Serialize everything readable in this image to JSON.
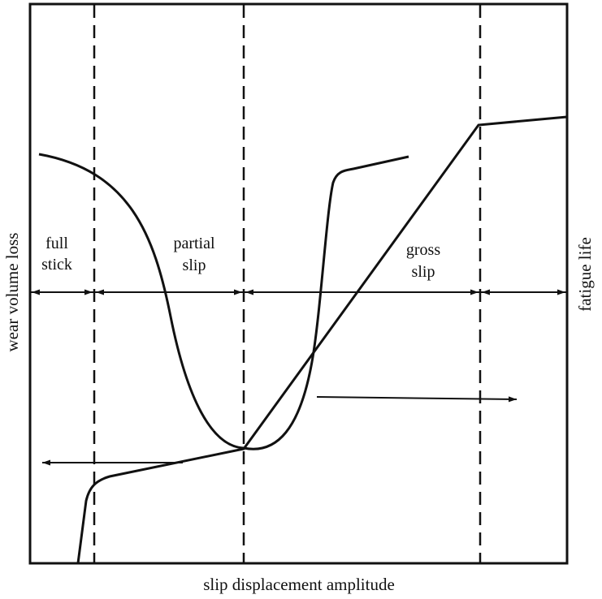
{
  "axes": {
    "x_label": "slip displacement amplitude",
    "y_left_label": "wear volume loss",
    "y_right_label": "fatigue life"
  },
  "regions": [
    {
      "line1": "full",
      "line2": "stick"
    },
    {
      "line1": "partial",
      "line2": "slip"
    },
    {
      "line1": "gross",
      "line2": "slip"
    }
  ],
  "colors": {
    "ink": "#111111",
    "background": "#ffffff"
  }
}
